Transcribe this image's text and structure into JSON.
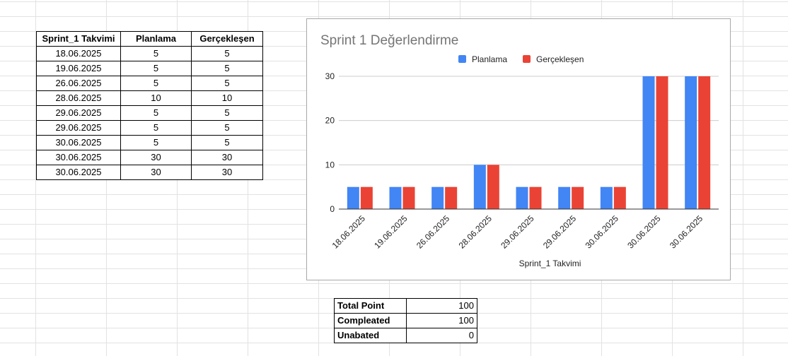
{
  "table": {
    "headers": [
      "Sprint_1 Takvimi",
      "Planlama",
      "Gerçekleşen"
    ],
    "rows": [
      [
        "18.06.2025",
        "5",
        "5"
      ],
      [
        "19.06.2025",
        "5",
        "5"
      ],
      [
        "26.06.2025",
        "5",
        "5"
      ],
      [
        "28.06.2025",
        "10",
        "10"
      ],
      [
        "29.06.2025",
        "5",
        "5"
      ],
      [
        "29.06.2025",
        "5",
        "5"
      ],
      [
        "30.06.2025",
        "5",
        "5"
      ],
      [
        "30.06.2025",
        "30",
        "30"
      ],
      [
        "30.06.2025",
        "30",
        "30"
      ]
    ]
  },
  "summary": {
    "rows": [
      {
        "label": "Total Point",
        "value": "100"
      },
      {
        "label": "Compleated",
        "value": "100"
      },
      {
        "label": "Unabated",
        "value": "0"
      }
    ]
  },
  "chart_data": {
    "type": "bar",
    "title": "Sprint 1 Değerlendirme",
    "xlabel": "Sprint_1 Takvimi",
    "ylabel": "",
    "categories": [
      "18.06.2025",
      "19.06.2025",
      "26.06.2025",
      "28.06.2025",
      "29.06.2025",
      "29.06.2025",
      "30.06.2025",
      "30.06.2025",
      "30.06.2025"
    ],
    "series": [
      {
        "name": "Planlama",
        "color": "#4285f4",
        "values": [
          5,
          5,
          5,
          10,
          5,
          5,
          5,
          30,
          30
        ]
      },
      {
        "name": "Gerçekleşen",
        "color": "#ea4335",
        "values": [
          5,
          5,
          5,
          10,
          5,
          5,
          5,
          30,
          30
        ]
      }
    ],
    "ylim": [
      0,
      30
    ],
    "yticks": [
      0,
      10,
      20,
      30
    ],
    "grid": true,
    "legend_position": "top"
  }
}
